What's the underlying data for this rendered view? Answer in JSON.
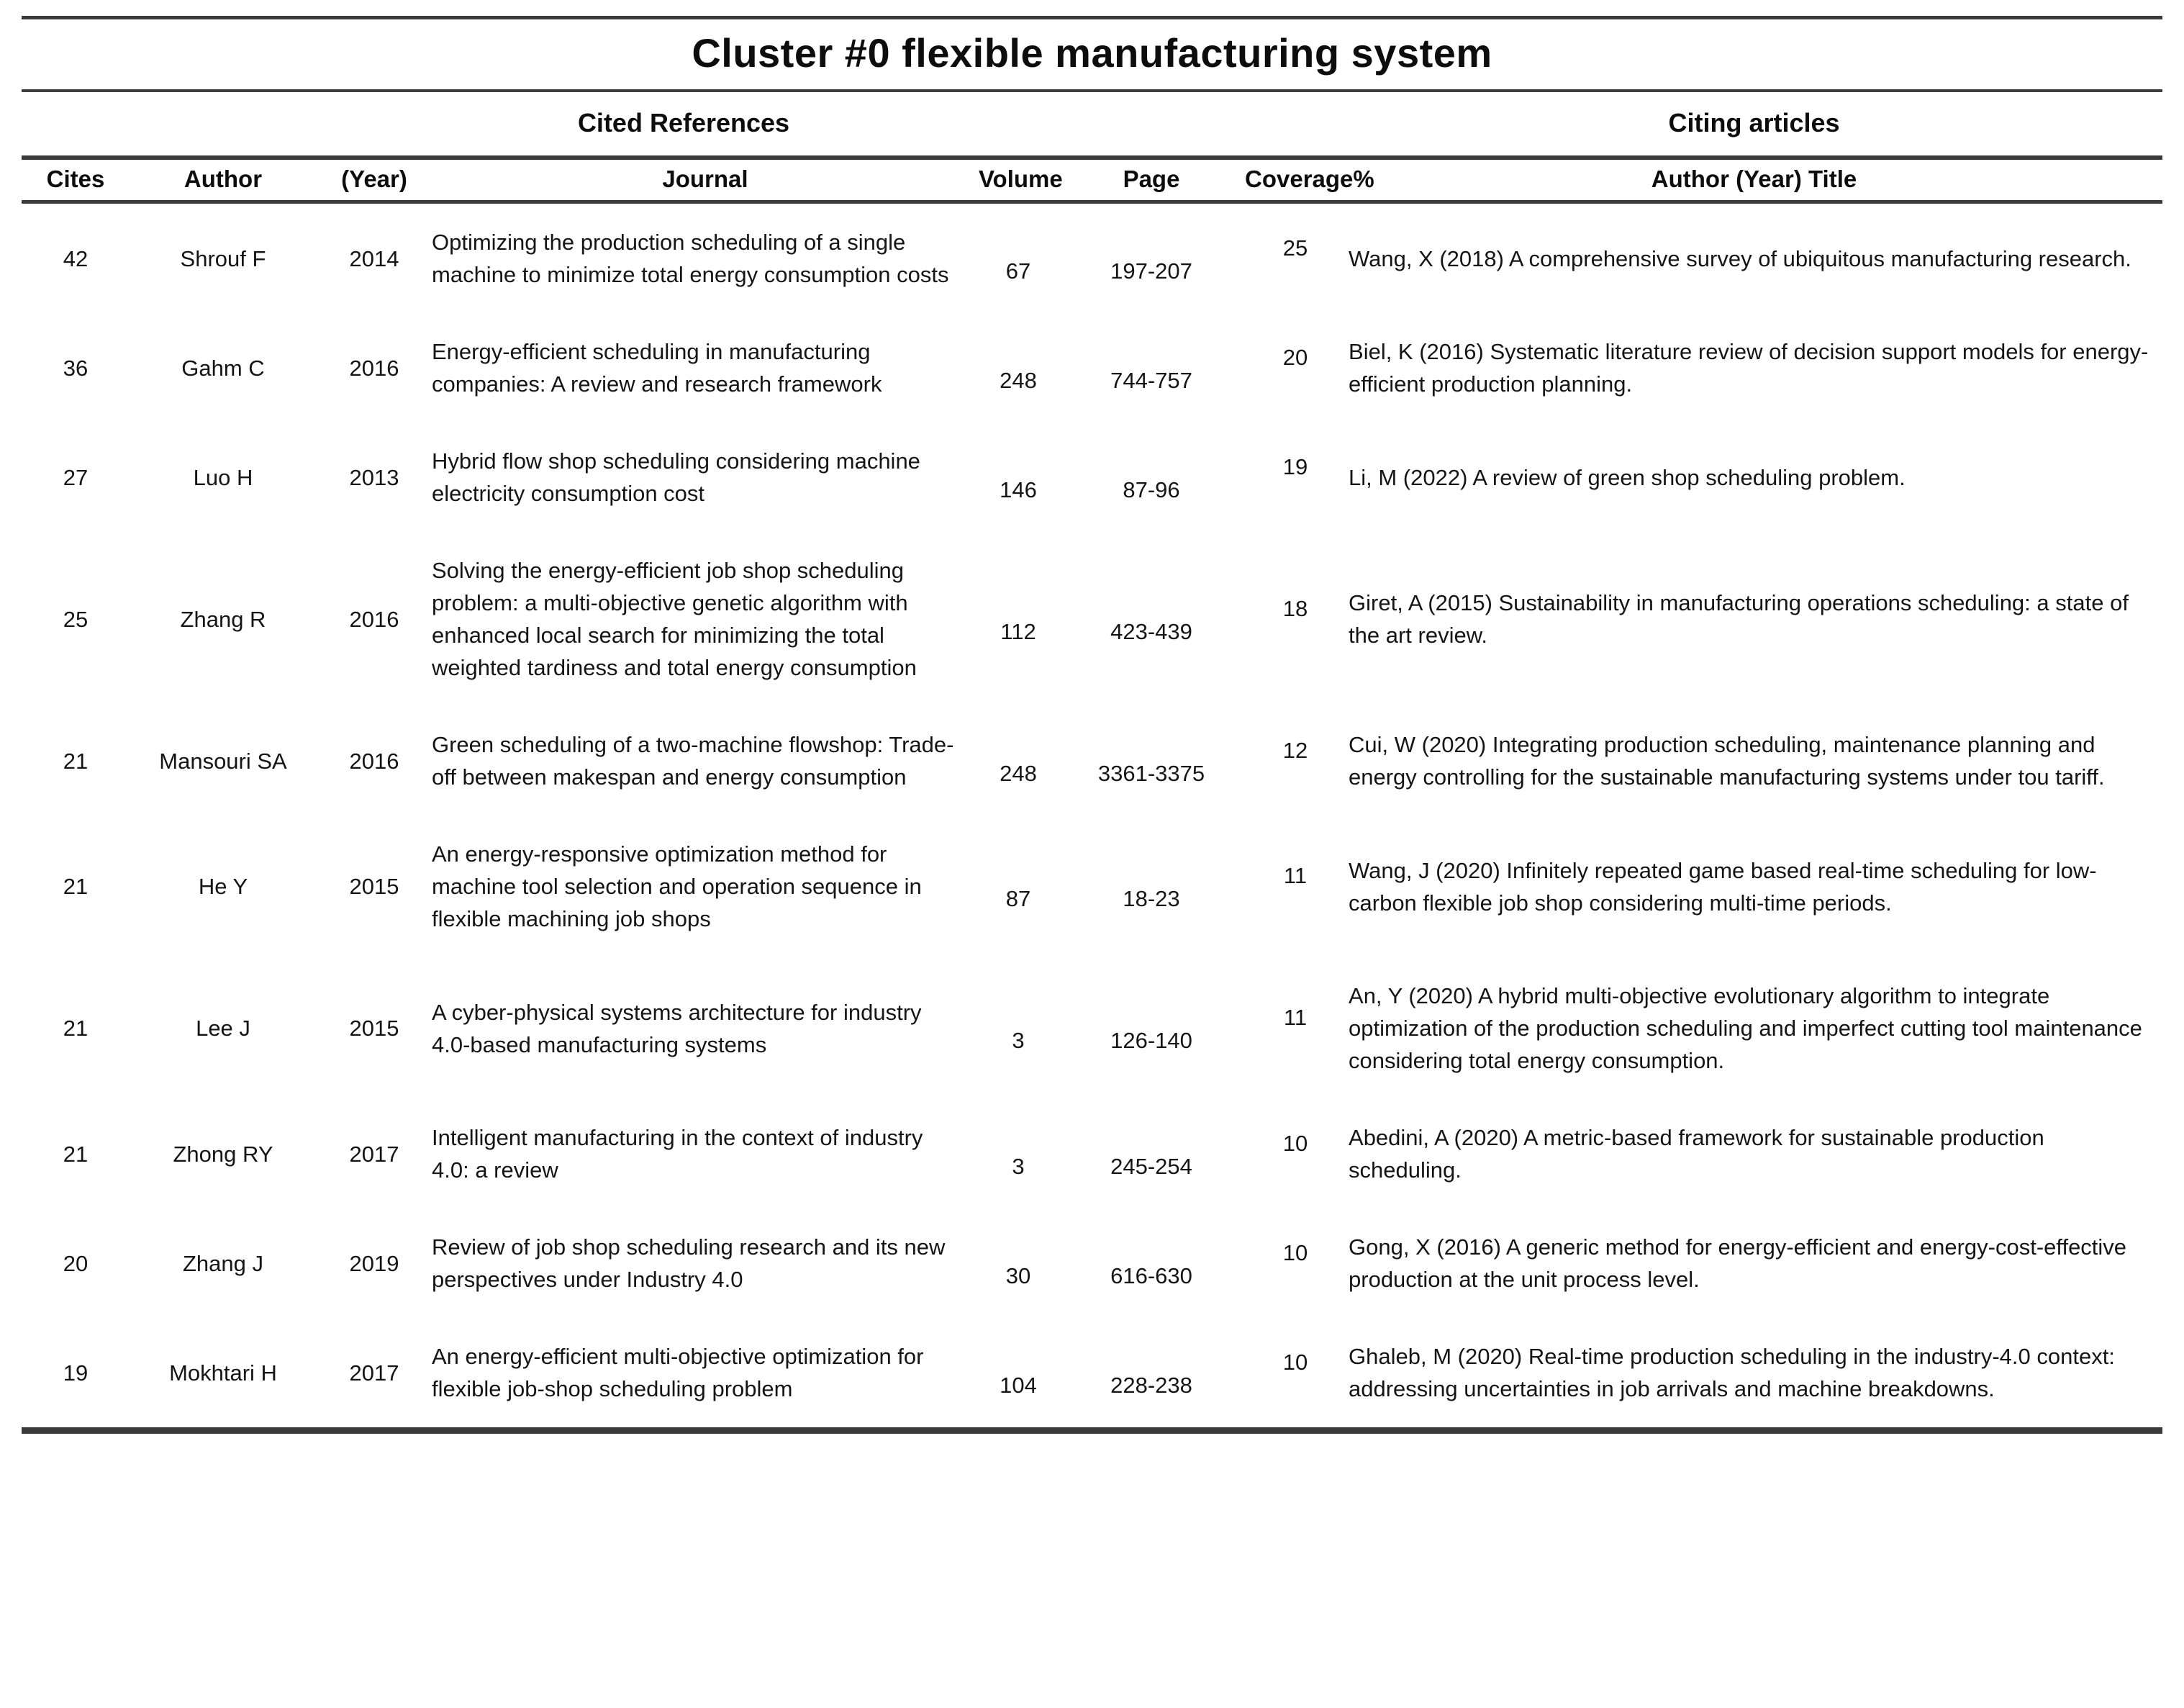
{
  "title": "Cluster #0 flexible manufacturing system",
  "group_headers": {
    "cited_references": "Cited References",
    "citing_articles": "Citing articles"
  },
  "columns": {
    "cites": "Cites",
    "author": "Author",
    "year": "(Year)",
    "journal": "Journal",
    "volume": "Volume",
    "page": "Page",
    "coverage": "Coverage%",
    "citing": "Author (Year) Title"
  },
  "rows": [
    {
      "cites": "42",
      "author": "Shrouf F",
      "year": "2014",
      "journal": "Optimizing the production scheduling of a single machine to minimize total energy consumption costs",
      "volume": "67",
      "page": "197-207",
      "coverage": "25",
      "citing": "Wang, X (2018) A comprehensive survey of ubiquitous manufacturing research."
    },
    {
      "cites": "36",
      "author": "Gahm C",
      "year": "2016",
      "journal": "Energy-efficient scheduling in manufacturing companies: A review and research framework",
      "volume": "248",
      "page": "744-757",
      "coverage": "20",
      "citing": "Biel, K (2016) Systematic literature review of decision support models for energy-efficient production planning."
    },
    {
      "cites": "27",
      "author": "Luo H",
      "year": "2013",
      "journal": "Hybrid flow shop scheduling considering machine electricity consumption cost",
      "volume": "146",
      "page": "87-96",
      "coverage": "19",
      "citing": "Li, M (2022) A review of green shop scheduling problem."
    },
    {
      "cites": "25",
      "author": "Zhang R",
      "year": "2016",
      "journal": "Solving the energy-efficient job shop scheduling problem: a multi-objective genetic algorithm with enhanced local search for minimizing the total weighted tardiness and total energy consumption",
      "volume": "112",
      "page": "423-439",
      "coverage": "18",
      "citing": "Giret, A (2015) Sustainability in manufacturing operations scheduling: a state of the art review."
    },
    {
      "cites": "21",
      "author": "Mansouri SA",
      "year": "2016",
      "journal": "Green scheduling of a two-machine flowshop: Trade-off between makespan and energy consumption",
      "volume": "248",
      "page": "3361-3375",
      "coverage": "12",
      "citing": "Cui, W (2020) Integrating production scheduling, maintenance planning and energy controlling for the sustainable manufacturing systems under tou tariff."
    },
    {
      "cites": "21",
      "author": "He Y",
      "year": "2015",
      "journal": "An energy-responsive optimization method for machine tool selection and operation sequence in flexible machining job shops",
      "volume": "87",
      "page": "18-23",
      "coverage": "11",
      "citing": "Wang, J (2020) Infinitely repeated game based real-time scheduling for low-carbon flexible job shop considering multi-time periods."
    },
    {
      "cites": "21",
      "author": "Lee J",
      "year": "2015",
      "journal": "A cyber-physical systems architecture for industry 4.0-based manufacturing systems",
      "volume": "3",
      "page": "126-140",
      "coverage": "11",
      "citing": "An, Y (2020) A hybrid multi-objective evolutionary algorithm to integrate optimization of the production scheduling and imperfect cutting tool maintenance considering total energy consumption."
    },
    {
      "cites": "21",
      "author": "Zhong RY",
      "year": "2017",
      "journal": "Intelligent manufacturing in the context of industry 4.0: a review",
      "volume": "3",
      "page": "245-254",
      "coverage": "10",
      "citing": "Abedini, A (2020) A metric-based framework for sustainable production scheduling."
    },
    {
      "cites": "20",
      "author": "Zhang J",
      "year": "2019",
      "journal": "Review of job shop scheduling research and its new perspectives under Industry 4.0",
      "volume": "30",
      "page": "616-630",
      "coverage": "10",
      "citing": "Gong, X (2016) A generic method for energy-efficient and energy-cost-effective production at the unit process level."
    },
    {
      "cites": "19",
      "author": "Mokhtari H",
      "year": "2017",
      "journal": "An energy-efficient multi-objective optimization for flexible job-shop scheduling problem",
      "volume": "104",
      "page": "228-238",
      "coverage": "10",
      "citing": "Ghaleb, M (2020) Real-time production scheduling in the industry-4.0 context: addressing uncertainties in job arrivals and machine breakdowns."
    }
  ]
}
